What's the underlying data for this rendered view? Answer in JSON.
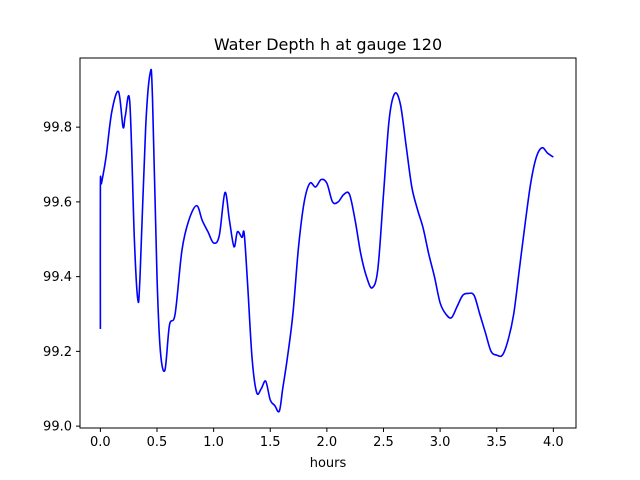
{
  "chart_data": {
    "type": "line",
    "title": "Water Depth h at gauge 120",
    "xlabel": "hours",
    "ylabel": "",
    "xlim": [
      -0.18,
      4.2
    ],
    "ylim": [
      98.995,
      99.985
    ],
    "grid": false,
    "x_ticks": [
      0.0,
      0.5,
      1.0,
      1.5,
      2.0,
      2.5,
      3.0,
      3.5,
      4.0
    ],
    "x_tick_labels": [
      "0.0",
      "0.5",
      "1.0",
      "1.5",
      "2.0",
      "2.5",
      "3.0",
      "3.5",
      "4.0"
    ],
    "y_ticks": [
      99.0,
      99.2,
      99.4,
      99.6,
      99.8
    ],
    "y_tick_labels": [
      "99.0",
      "99.2",
      "99.4",
      "99.6",
      "99.8"
    ],
    "series": [
      {
        "color": "#0000ff",
        "x": [
          0.0,
          0.0,
          0.01,
          0.05,
          0.1,
          0.16,
          0.2,
          0.22,
          0.26,
          0.3,
          0.33,
          0.35,
          0.4,
          0.44,
          0.46,
          0.5,
          0.53,
          0.57,
          0.61,
          0.66,
          0.72,
          0.78,
          0.85,
          0.9,
          0.95,
          1.0,
          1.05,
          1.1,
          1.14,
          1.18,
          1.21,
          1.25,
          1.27,
          1.3,
          1.34,
          1.38,
          1.42,
          1.46,
          1.5,
          1.54,
          1.58,
          1.61,
          1.65,
          1.7,
          1.75,
          1.8,
          1.85,
          1.9,
          1.95,
          2.0,
          2.05,
          2.1,
          2.15,
          2.2,
          2.25,
          2.3,
          2.35,
          2.4,
          2.45,
          2.5,
          2.55,
          2.6,
          2.65,
          2.7,
          2.75,
          2.8,
          2.85,
          2.9,
          2.95,
          3.0,
          3.05,
          3.1,
          3.15,
          3.2,
          3.25,
          3.3,
          3.35,
          3.4,
          3.45,
          3.5,
          3.55,
          3.6,
          3.65,
          3.7,
          3.75,
          3.8,
          3.85,
          3.9,
          3.95,
          4.0
        ],
        "y": [
          99.26,
          99.64,
          99.65,
          99.72,
          99.84,
          99.895,
          99.8,
          99.83,
          99.865,
          99.5,
          99.34,
          99.4,
          99.8,
          99.945,
          99.88,
          99.4,
          99.2,
          99.15,
          99.27,
          99.3,
          99.47,
          99.55,
          99.59,
          99.55,
          99.52,
          99.49,
          99.51,
          99.625,
          99.55,
          99.48,
          99.52,
          99.505,
          99.515,
          99.38,
          99.18,
          99.09,
          99.1,
          99.12,
          99.07,
          99.055,
          99.04,
          99.1,
          99.18,
          99.3,
          99.48,
          99.6,
          99.65,
          99.64,
          99.66,
          99.65,
          99.6,
          99.6,
          99.62,
          99.62,
          99.55,
          99.46,
          99.4,
          99.37,
          99.42,
          99.62,
          99.82,
          99.89,
          99.86,
          99.75,
          99.64,
          99.58,
          99.53,
          99.46,
          99.4,
          99.33,
          99.3,
          99.29,
          99.32,
          99.35,
          99.355,
          99.35,
          99.3,
          99.25,
          99.2,
          99.19,
          99.19,
          99.23,
          99.3,
          99.42,
          99.54,
          99.65,
          99.72,
          99.745,
          99.73,
          99.72
        ]
      }
    ]
  }
}
